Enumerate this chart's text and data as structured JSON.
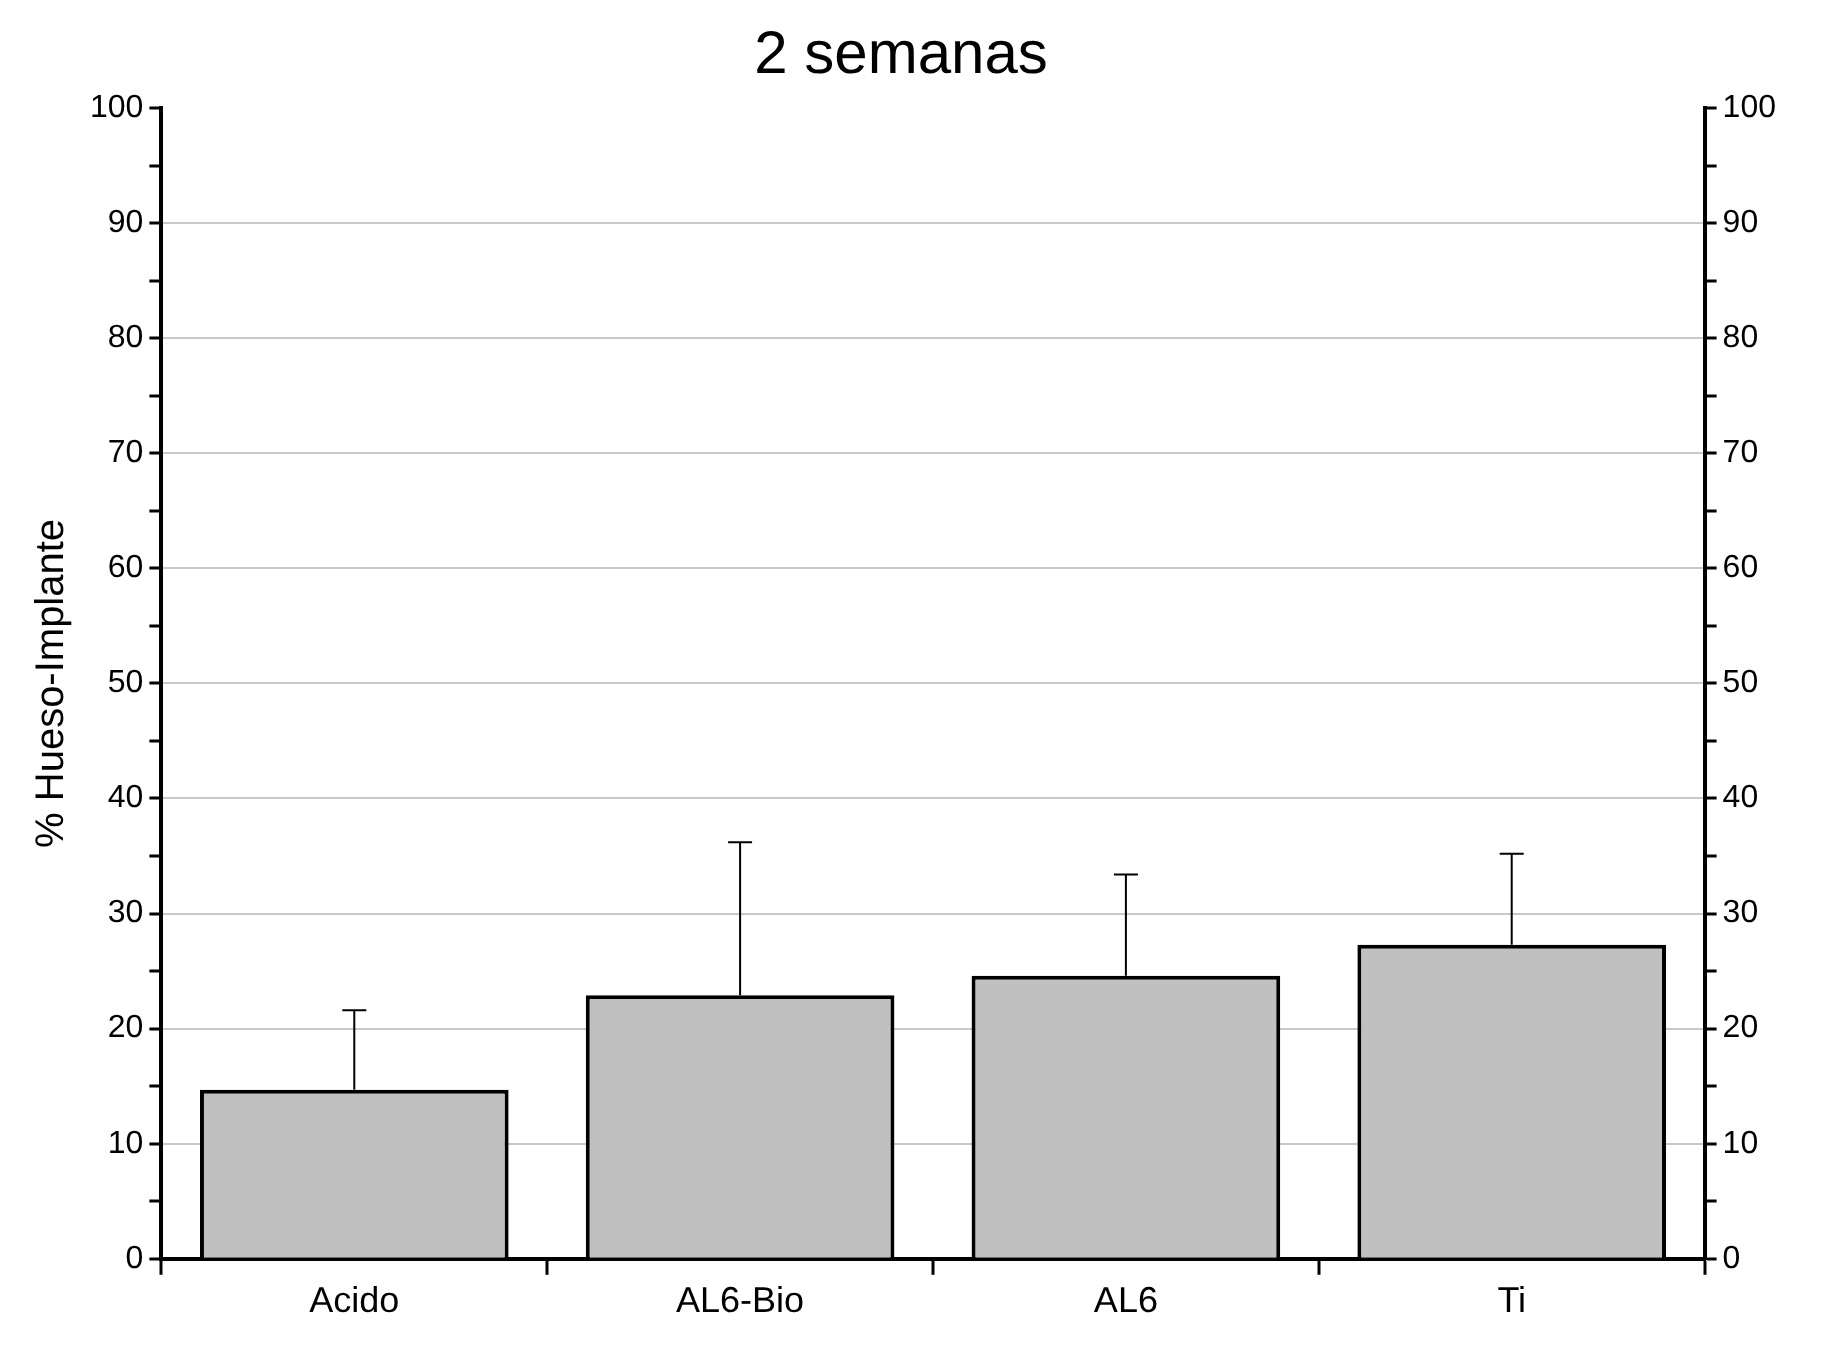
{
  "chart_data": {
    "type": "bar",
    "title": "2 semanas",
    "ylabel": "% Hueso-Implante",
    "categories": [
      "Acido",
      "AL6-Bio",
      "AL6",
      "Ti"
    ],
    "values": [
      14.7,
      22.9,
      24.6,
      27.3
    ],
    "errors": [
      [
        14.7,
        21.6
      ],
      [
        22.9,
        36.2
      ],
      [
        24.6,
        33.4
      ],
      [
        27.3,
        35.2
      ]
    ],
    "color": "#c0c0c0",
    "ylim": [
      0,
      100
    ],
    "yticks": [
      0,
      {
        "value": 5,
        "label": null
      },
      10,
      {
        "value": 15,
        "label": null
      },
      20,
      {
        "value": 25,
        "label": null
      },
      30,
      {
        "value": 35,
        "label": null
      },
      40,
      {
        "value": 45,
        "label": null
      },
      50,
      {
        "value": 55,
        "label": null
      },
      60,
      {
        "value": 65,
        "label": null
      },
      70,
      {
        "value": 75,
        "label": null
      },
      80,
      {
        "value": 85,
        "label": null
      },
      90,
      {
        "value": 95,
        "label": null
      },
      100
    ],
    "y2lim": [
      0,
      100
    ],
    "y2ticks": [
      0,
      {
        "value": 5,
        "label": null
      },
      10,
      {
        "value": 15,
        "label": null
      },
      20,
      {
        "value": 25,
        "label": null
      },
      30,
      {
        "value": 35,
        "label": null
      },
      40,
      {
        "value": 45,
        "label": null
      },
      50,
      {
        "value": 55,
        "label": null
      },
      60,
      {
        "value": 65,
        "label": null
      },
      70,
      {
        "value": 75,
        "label": null
      },
      80,
      {
        "value": 85,
        "label": null
      },
      90,
      {
        "value": 95,
        "label": null
      },
      100
    ],
    "grid": "y",
    "legend": false
  }
}
